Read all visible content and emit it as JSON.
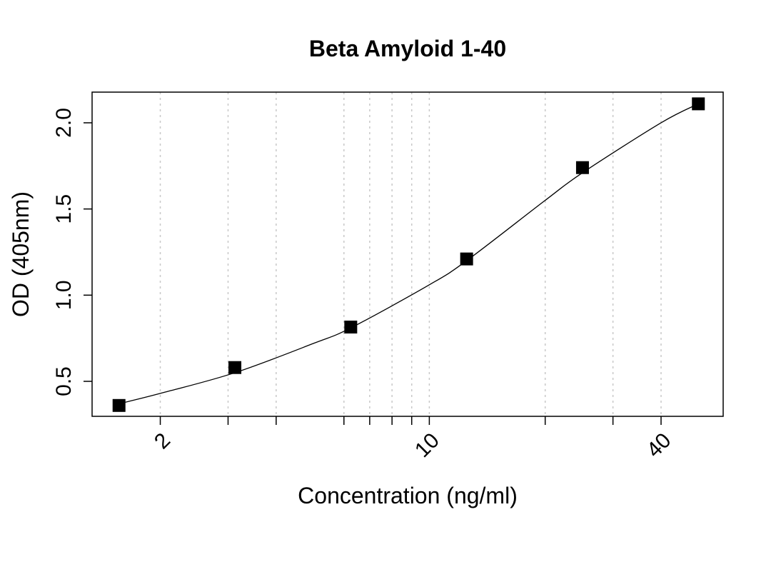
{
  "chart_data": {
    "type": "scatter",
    "title": "Beta Amyloid 1-40",
    "xlabel": "Concentration (ng/ml)",
    "ylabel": "OD (405nm)",
    "x_scale": "log",
    "xlim": [
      1.33,
      58
    ],
    "ylim": [
      0.297,
      2.178
    ],
    "x_ticks": [
      2,
      3,
      4,
      6,
      7,
      8,
      9,
      10,
      20,
      30,
      40
    ],
    "x_tick_labels": [
      {
        "value": 2,
        "label": "2"
      },
      {
        "value": 10,
        "label": "10"
      },
      {
        "value": 40,
        "label": "40"
      }
    ],
    "y_ticks": [
      {
        "value": 0.5,
        "label": "0.5"
      },
      {
        "value": 1.0,
        "label": "1.0"
      },
      {
        "value": 1.5,
        "label": "1.5"
      },
      {
        "value": 2.0,
        "label": "2.0"
      }
    ],
    "grid": "vertical dotted at x ticks",
    "marker": "filled square",
    "marker_color": "#000000",
    "points": {
      "x": [
        1.5625,
        3.125,
        6.25,
        12.5,
        25,
        50
      ],
      "y": [
        0.36,
        0.58,
        0.815,
        1.21,
        1.74,
        2.11
      ]
    },
    "fit_curve": {
      "x": [
        1.5625,
        2,
        3.125,
        5,
        6.25,
        10,
        12.5,
        20,
        25,
        40,
        50
      ],
      "y": [
        0.37,
        0.43,
        0.55,
        0.72,
        0.81,
        1.06,
        1.2,
        1.55,
        1.71,
        2.0,
        2.11
      ]
    }
  }
}
